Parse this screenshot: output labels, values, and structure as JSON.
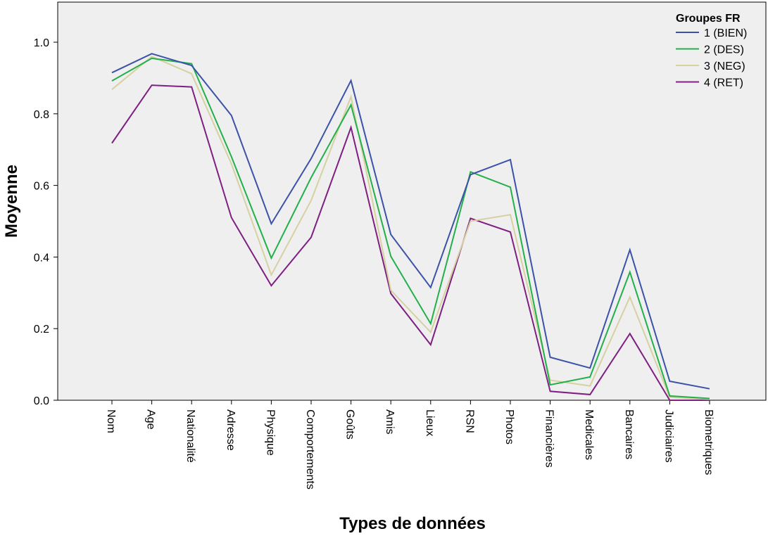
{
  "chart_data": {
    "type": "line",
    "title": "",
    "xlabel": "Types de données",
    "ylabel": "Moyenne",
    "ylim": [
      0,
      1.0
    ],
    "yticks": [
      "0.0",
      "0.2",
      "0.4",
      "0.6",
      "0.8",
      "1.0"
    ],
    "grid": false,
    "legend_title": "Groupes FR",
    "legend_position": "top-right",
    "plot_background": "#efefef",
    "categories": [
      "Nom",
      "Age",
      "Nationalité",
      "Adresse",
      "Physique",
      "Comportements",
      "Goûts",
      "Amis",
      "Lieux",
      "RSN",
      "Photos",
      "Financières",
      "Medicales",
      "Bancaires",
      "Judiciaires",
      "Biometriques"
    ],
    "series": [
      {
        "name": "1 (BIEN)",
        "color": "#3b52a8",
        "values": [
          0.915,
          0.968,
          0.935,
          0.795,
          0.493,
          0.675,
          0.893,
          0.463,
          0.315,
          0.63,
          0.672,
          0.12,
          0.09,
          0.42,
          0.053,
          0.032
        ]
      },
      {
        "name": "2 (DES)",
        "color": "#22b04a",
        "values": [
          0.892,
          0.955,
          0.94,
          0.68,
          0.397,
          0.622,
          0.825,
          0.402,
          0.214,
          0.638,
          0.595,
          0.043,
          0.065,
          0.358,
          0.012,
          0.005
        ]
      },
      {
        "name": "3 (NEG)",
        "color": "#d6d1a0",
        "values": [
          0.868,
          0.96,
          0.912,
          0.66,
          0.35,
          0.558,
          0.848,
          0.307,
          0.19,
          0.5,
          0.518,
          0.056,
          0.04,
          0.288,
          0.008,
          0.003
        ]
      },
      {
        "name": "4 (RET)",
        "color": "#7e1f82",
        "values": [
          0.718,
          0.88,
          0.875,
          0.51,
          0.32,
          0.455,
          0.762,
          0.298,
          0.155,
          0.508,
          0.47,
          0.025,
          0.016,
          0.186,
          0.0,
          0.0
        ]
      }
    ]
  }
}
